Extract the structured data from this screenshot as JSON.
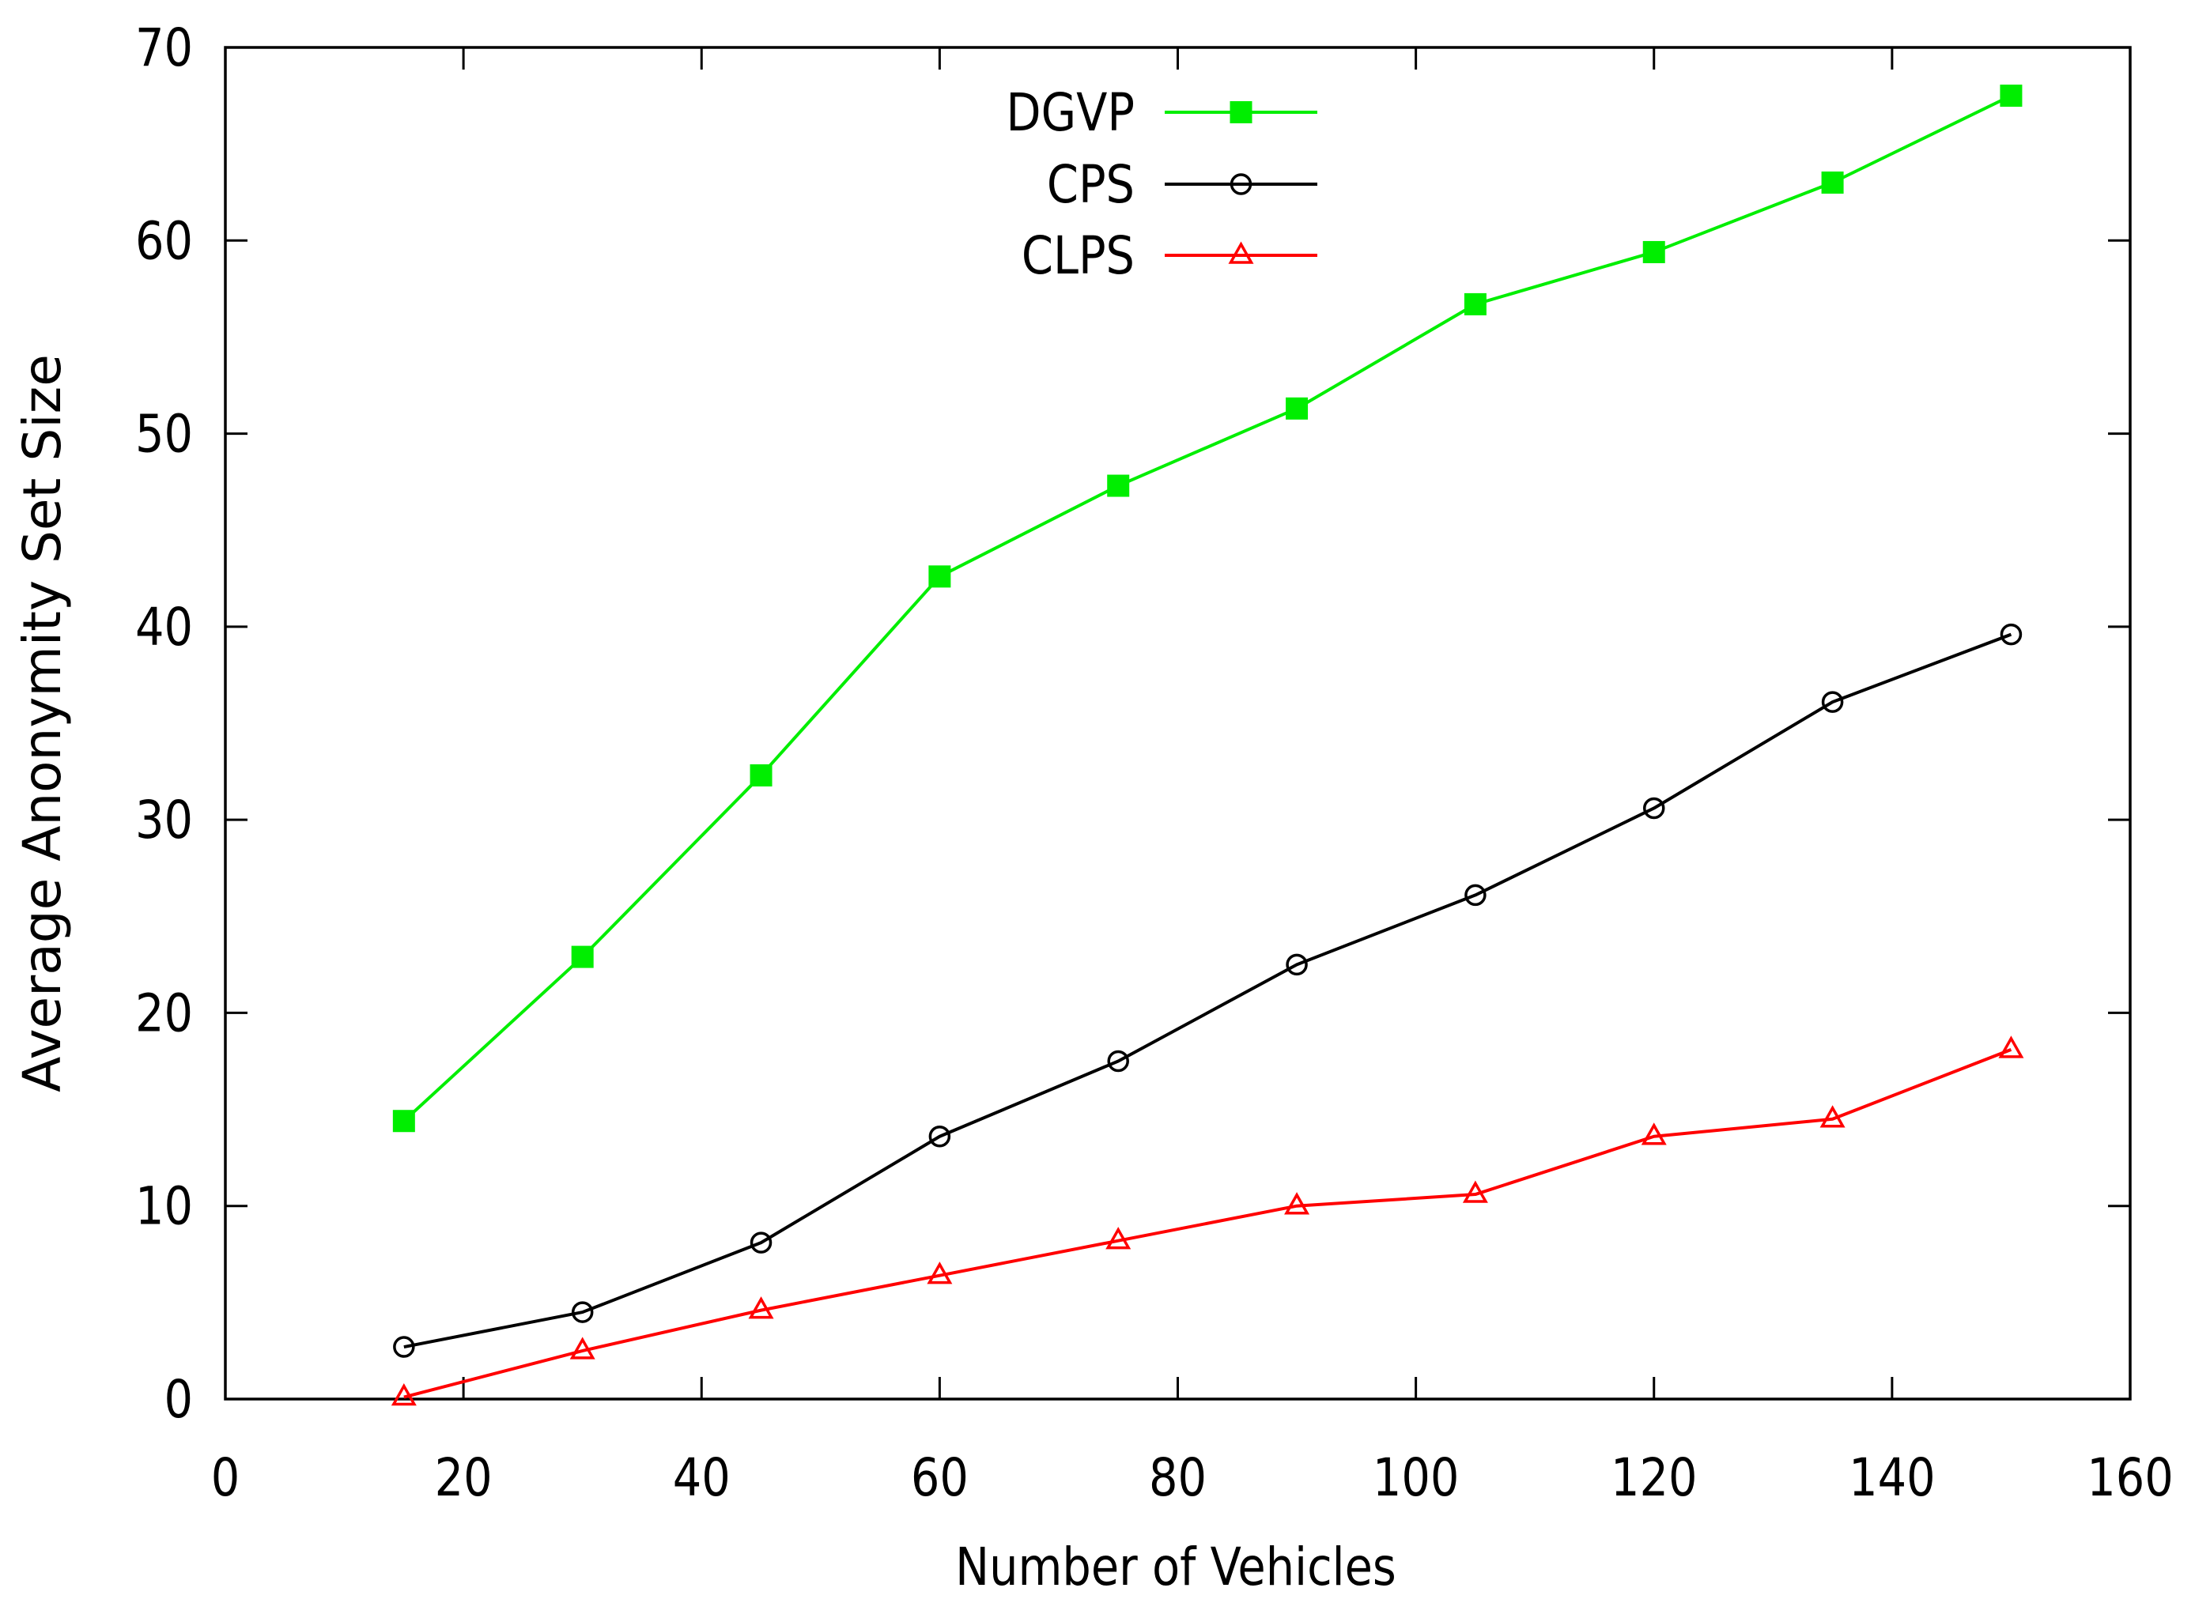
{
  "chart_data": {
    "type": "line",
    "title": "",
    "xlabel": "Number of Vehicles",
    "ylabel": "Average Anonymity Set Size",
    "xlim": [
      0,
      160
    ],
    "ylim": [
      0,
      70
    ],
    "xticks": [
      0,
      20,
      40,
      60,
      80,
      100,
      120,
      140,
      160
    ],
    "yticks": [
      0,
      10,
      20,
      30,
      40,
      50,
      60,
      70
    ],
    "grid": false,
    "legend_position": "top-center",
    "x": [
      15,
      30,
      45,
      60,
      75,
      90,
      105,
      120,
      135,
      150
    ],
    "series": [
      {
        "name": "DGVP",
        "color": "#00ee00",
        "marker": "filled-square",
        "values": [
          14.4,
          22.9,
          32.3,
          42.6,
          47.3,
          51.3,
          56.7,
          59.4,
          63.0,
          67.5
        ]
      },
      {
        "name": "CPS",
        "color": "#000000",
        "marker": "open-circle",
        "values": [
          2.7,
          4.5,
          8.1,
          13.6,
          17.5,
          22.5,
          26.1,
          30.6,
          36.1,
          39.6
        ]
      },
      {
        "name": "CLPS",
        "color": "#ff0000",
        "marker": "open-triangle",
        "values": [
          0.1,
          2.5,
          4.6,
          6.4,
          8.2,
          10.0,
          10.6,
          13.6,
          14.5,
          18.1
        ]
      }
    ]
  }
}
